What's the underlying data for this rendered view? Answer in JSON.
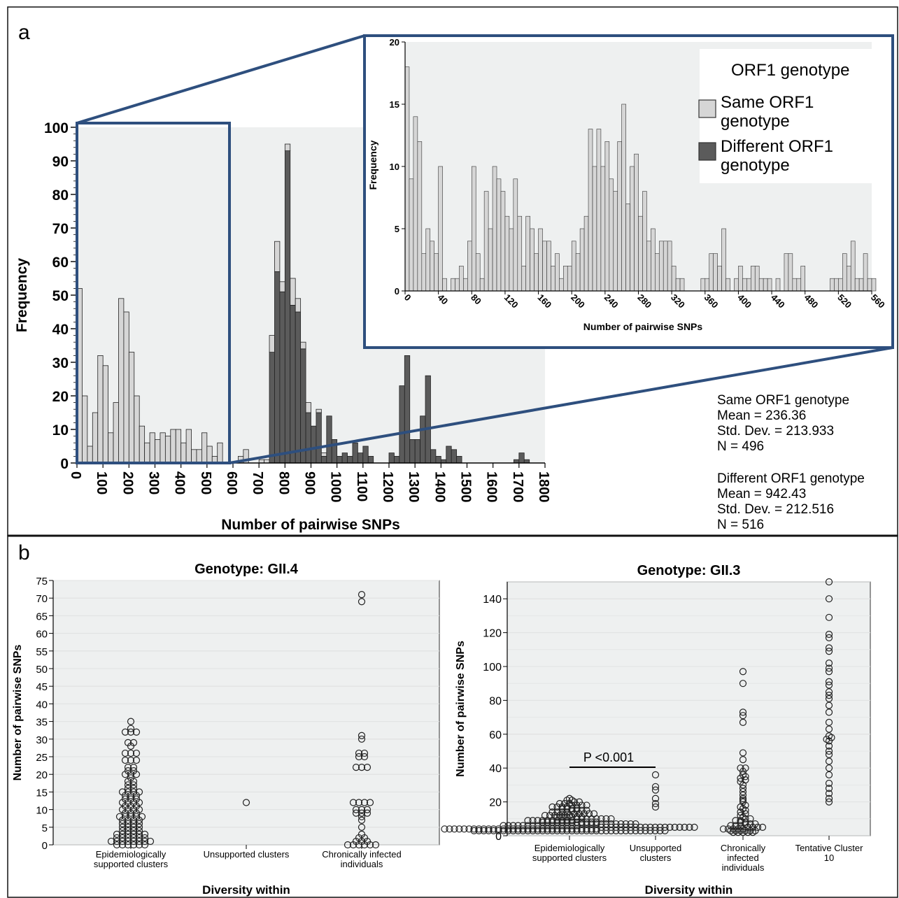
{
  "panel_labels": [
    "a",
    "b"
  ],
  "stats": {
    "same": {
      "name": "Same ORF1 genotype",
      "mean": "Mean = 236.36",
      "sd": "Std. Dev. = 213.933",
      "n": "N = 496"
    },
    "diff": {
      "name": "Different ORF1 genotype",
      "mean": "Mean = 942.43",
      "sd": "Std. Dev. = 212.516",
      "n": "N = 516"
    }
  },
  "legend": {
    "title": "ORF1 genotype",
    "same_l1": "Same ORF1",
    "same_l2": "genotype",
    "diff_l1": "Different ORF1",
    "diff_l2": "genotype"
  },
  "colors": {
    "same": "#d6d6d6",
    "diff": "#5b5b5b",
    "frame": "#2e4f7e",
    "bg": "#eef0f0"
  },
  "chart_data": [
    {
      "type": "bar",
      "subtype": "stacked histogram",
      "xlabel": "Number of pairwise SNPs",
      "ylabel": "Frequency",
      "xlim": [
        0,
        1800
      ],
      "ylim": [
        0,
        100
      ],
      "xticks": [
        "0",
        "100",
        "200",
        "300",
        "400",
        "500",
        "600",
        "700",
        "800",
        "900",
        "1000",
        "1100",
        "1200",
        "1300",
        "1400",
        "1500",
        "1600",
        "1700",
        "1800"
      ],
      "yticks": [
        "0",
        "10",
        "20",
        "30",
        "40",
        "50",
        "60",
        "70",
        "80",
        "90",
        "100"
      ],
      "bin_width": 20,
      "series": [
        {
          "name": "Same ORF1 genotype",
          "x": [
            0,
            20,
            40,
            60,
            80,
            100,
            120,
            140,
            160,
            180,
            200,
            220,
            240,
            260,
            280,
            300,
            320,
            340,
            360,
            380,
            400,
            420,
            440,
            460,
            480,
            500,
            520,
            540,
            560,
            580,
            600,
            620,
            640,
            660,
            680,
            700,
            720,
            740,
            760,
            780,
            800,
            820,
            840,
            860,
            880,
            900,
            920,
            940,
            960,
            980
          ],
          "values": [
            52,
            20,
            5,
            15,
            32,
            29,
            9,
            18,
            49,
            45,
            33,
            20,
            11,
            6,
            9,
            7,
            9,
            8,
            10,
            10,
            6,
            10,
            4,
            4,
            9,
            5,
            2,
            6,
            0,
            0,
            0,
            2,
            4,
            0,
            0,
            1,
            1,
            5,
            9,
            3,
            2,
            8,
            4,
            2,
            3,
            0,
            1,
            1,
            0,
            0
          ]
        },
        {
          "name": "Different ORF1 genotype",
          "x": [
            740,
            760,
            780,
            800,
            820,
            840,
            860,
            880,
            900,
            920,
            940,
            960,
            980,
            1000,
            1020,
            1040,
            1060,
            1080,
            1100,
            1120,
            1200,
            1220,
            1240,
            1260,
            1280,
            1300,
            1320,
            1340,
            1360,
            1380,
            1400,
            1420,
            1440,
            1460,
            1680,
            1700,
            1720
          ],
          "values": [
            33,
            57,
            51,
            93,
            47,
            45,
            34,
            15,
            11,
            15,
            2,
            14,
            7,
            2,
            3,
            2,
            6,
            3,
            5,
            2,
            3,
            2,
            23,
            32,
            7,
            7,
            14,
            26,
            4,
            2,
            1,
            5,
            4,
            2,
            1,
            3,
            1
          ]
        }
      ]
    },
    {
      "type": "bar",
      "subtype": "histogram (zoom 0-560)",
      "xlabel": "Number of pairwise SNPs",
      "ylabel": "Frequency",
      "xlim": [
        0,
        560
      ],
      "ylim": [
        0,
        20
      ],
      "xticks": [
        "0",
        "40",
        "80",
        "120",
        "160",
        "200",
        "240",
        "280",
        "320",
        "360",
        "400",
        "440",
        "480",
        "520",
        "560"
      ],
      "yticks": [
        "0",
        "5",
        "10",
        "15",
        "20"
      ],
      "bin_width": 5,
      "series": [
        {
          "name": "Same ORF1 genotype",
          "x_start": 0,
          "values": [
            18,
            9,
            14,
            12,
            3,
            5,
            4,
            3,
            10,
            1,
            0,
            1,
            1,
            2,
            1,
            4,
            10,
            3,
            1,
            8,
            5,
            10,
            9,
            8,
            6,
            5,
            9,
            6,
            2,
            6,
            5,
            3,
            5,
            4,
            4,
            2,
            3,
            1,
            2,
            2,
            4,
            3,
            5,
            6,
            13,
            10,
            13,
            10,
            12,
            9,
            8,
            12,
            15,
            7,
            10,
            11,
            6,
            8,
            4,
            5,
            3,
            4,
            4,
            4,
            2,
            1,
            1,
            0,
            0,
            0,
            0,
            1,
            1,
            3,
            3,
            2,
            5,
            1,
            0,
            1,
            2,
            1,
            1,
            2,
            2,
            1,
            1,
            1,
            0,
            1,
            0,
            3,
            3,
            1,
            1,
            2,
            0,
            0,
            0,
            0,
            0,
            0,
            1,
            1,
            1,
            3,
            2,
            4,
            1,
            1,
            3,
            1,
            1,
            0,
            0,
            0,
            0,
            0,
            0,
            2,
            1,
            1,
            0,
            0,
            0,
            1,
            0,
            1,
            2,
            1,
            2
          ]
        }
      ]
    },
    {
      "type": "scatter",
      "subtype": "dot plot",
      "title": "Genotype: GII.4",
      "xlabel": "Diversity within",
      "ylabel": "Number of pairwise SNPs",
      "ylim": [
        0,
        75
      ],
      "yticks": [
        "0",
        "5",
        "10",
        "15",
        "20",
        "25",
        "30",
        "35",
        "40",
        "45",
        "50",
        "55",
        "60",
        "65",
        "70",
        "75"
      ],
      "categories": [
        {
          "lines": [
            "Epidemiologically",
            "supported clusters"
          ],
          "values": [
            0,
            0,
            0,
            0,
            0,
            0,
            1,
            1,
            1,
            1,
            1,
            1,
            1,
            1,
            2,
            2,
            2,
            2,
            2,
            2,
            3,
            3,
            3,
            3,
            3,
            3,
            4,
            4,
            4,
            4,
            5,
            5,
            5,
            5,
            6,
            6,
            6,
            6,
            7,
            7,
            7,
            7,
            8,
            8,
            8,
            8,
            8,
            9,
            9,
            9,
            10,
            10,
            10,
            10,
            11,
            11,
            11,
            12,
            12,
            12,
            12,
            13,
            13,
            13,
            14,
            14,
            14,
            15,
            15,
            15,
            15,
            16,
            16,
            17,
            17,
            18,
            18,
            19,
            20,
            20,
            20,
            21,
            21,
            22,
            22,
            24,
            24,
            24,
            26,
            26,
            26,
            28,
            29,
            29,
            32,
            32,
            32,
            33,
            35
          ]
        },
        {
          "lines": [
            "Unsupported clusters"
          ],
          "values": [
            12
          ]
        },
        {
          "lines": [
            "Chronically infected",
            "individuals"
          ],
          "values": [
            0,
            0,
            0,
            0,
            0,
            0,
            1,
            1,
            1,
            2,
            2,
            3,
            5,
            7,
            8,
            9,
            9,
            9,
            10,
            10,
            10,
            12,
            12,
            12,
            12,
            22,
            22,
            22,
            25,
            25,
            26,
            26,
            30,
            31,
            69,
            71
          ]
        }
      ]
    },
    {
      "type": "scatter",
      "subtype": "dot plot",
      "title": "Genotype: GII.3",
      "xlabel": "Diversity within",
      "ylabel": "Number of pairwise SNPs",
      "ylim": [
        0,
        150
      ],
      "yticks": [
        "0",
        "20",
        "40",
        "60",
        "80",
        "100",
        "120",
        "140"
      ],
      "annotation": "P <0.001",
      "categories": [
        {
          "lines": [
            "Epidemiologically",
            "supported clusters"
          ],
          "values": [
            3,
            3,
            3,
            3,
            3,
            3,
            3,
            3,
            3,
            3,
            3,
            3,
            3,
            3,
            3,
            3,
            3,
            3,
            3,
            3,
            3,
            3,
            3,
            3,
            3,
            3,
            3,
            3,
            3,
            3,
            3,
            3,
            3,
            3,
            3,
            3,
            3,
            3,
            3,
            3,
            4,
            4,
            4,
            4,
            4,
            4,
            4,
            4,
            4,
            4,
            4,
            4,
            4,
            4,
            4,
            4,
            4,
            4,
            4,
            4,
            4,
            4,
            4,
            4,
            4,
            4,
            4,
            4,
            4,
            4,
            4,
            4,
            5,
            5,
            5,
            5,
            5,
            5,
            5,
            5,
            5,
            5,
            5,
            5,
            5,
            5,
            5,
            5,
            5,
            5,
            5,
            5,
            6,
            6,
            6,
            6,
            6,
            6,
            6,
            6,
            6,
            6,
            6,
            6,
            6,
            6,
            6,
            6,
            7,
            7,
            7,
            7,
            7,
            7,
            7,
            7,
            7,
            7,
            7,
            7,
            8,
            8,
            8,
            8,
            8,
            8,
            8,
            8,
            8,
            8,
            8,
            8,
            9,
            9,
            9,
            9,
            9,
            9,
            9,
            9,
            9,
            9,
            10,
            10,
            10,
            10,
            10,
            10,
            10,
            10,
            11,
            11,
            11,
            11,
            11,
            11,
            12,
            12,
            12,
            12,
            12,
            12,
            13,
            13,
            13,
            13,
            13,
            14,
            14,
            14,
            14,
            15,
            15,
            15,
            15,
            16,
            16,
            16,
            16,
            17,
            17,
            17,
            17,
            18,
            18,
            18,
            18,
            19,
            19,
            19,
            20,
            20,
            21,
            21,
            22
          ]
        },
        {
          "lines": [
            "Unsupported",
            "clusters"
          ],
          "values": [
            17,
            19,
            22,
            27,
            29,
            36
          ]
        },
        {
          "lines": [
            "Chronically",
            "infected",
            "individuals"
          ],
          "values": [
            2,
            2,
            2,
            2,
            2,
            3,
            3,
            3,
            3,
            3,
            3,
            4,
            4,
            4,
            4,
            4,
            5,
            5,
            5,
            5,
            6,
            6,
            6,
            7,
            7,
            7,
            8,
            8,
            9,
            9,
            10,
            10,
            11,
            12,
            13,
            14,
            15,
            16,
            17,
            18,
            20,
            21,
            22,
            24,
            26,
            28,
            30,
            32,
            33,
            34,
            35,
            36,
            38,
            40,
            40,
            45,
            49,
            67,
            71,
            73,
            90,
            97
          ]
        },
        {
          "lines": [
            "Tentative Cluster",
            "10"
          ],
          "values": [
            20,
            22,
            25,
            28,
            31,
            36,
            40,
            44,
            48,
            50,
            53,
            56,
            57,
            58,
            59,
            63,
            67,
            73,
            77,
            81,
            83,
            85,
            89,
            91,
            97,
            99,
            102,
            109,
            111,
            117,
            119,
            129,
            140,
            150
          ]
        }
      ]
    }
  ]
}
